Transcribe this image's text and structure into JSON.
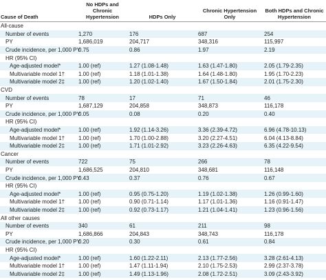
{
  "table": {
    "header": [
      "Cause of Death",
      "No HDPs and Chronic Hypertension",
      "HDPs Only",
      "Chronic Hypertension Only",
      "Both HDPs and Chronic Hypertension"
    ],
    "sections": [
      {
        "title": "All-cause",
        "rows": [
          [
            "Number of events",
            "1,270",
            "176",
            "687",
            "254"
          ],
          [
            "PY",
            "1,686,019",
            "204,717",
            "348,316",
            "115,997"
          ],
          [
            "Crude incidence, per 1,000 PY",
            "0.75",
            "0.86",
            "1.97",
            "2.19"
          ],
          [
            "HR (95% CI)"
          ],
          [
            "Age-adjusted model*",
            "1.00 (ref)",
            "1.27 (1.08-1.48)",
            "1.63 (1.47-1.80)",
            "2.05 (1.79-2.35)"
          ],
          [
            "Multivariable model 1†",
            "1.00 (ref)",
            "1.18 (1.01-1.38)",
            "1.64 (1.48-1.80)",
            "1.95 (1.70-2.23)"
          ],
          [
            "Multivariable model 2‡",
            "1.00 (ref)",
            "1.20 (1.02-1.40)",
            "1.67 (1.50-1.84)",
            "2.01 (1.75-2.30)"
          ]
        ]
      },
      {
        "title": "CVD",
        "rows": [
          [
            "Number of events",
            "78",
            "17",
            "71",
            "46"
          ],
          [
            "PY",
            "1,687,129",
            "204,858",
            "348,873",
            "116,178"
          ],
          [
            "Crude incidence, per 1,000 PY",
            "0.05",
            "0.08",
            "0.20",
            "0.40"
          ],
          [
            "HR (95% CI)"
          ],
          [
            "Age-adjusted model*",
            "1.00 (ref)",
            "1.92 (1.14-3.26)",
            "3.36 (2.39-4.72)",
            "6.96 (4.78-10.13)"
          ],
          [
            "Multivariable model 1†",
            "1.00 (ref)",
            "1.70 (1.00-2.88)",
            "3.20 (2.27-4.51)",
            "6.04 (4.13-8.84)"
          ],
          [
            "Multivariable model 2‡",
            "1.00 (ref)",
            "1.71 (1.01-2.92)",
            "3.23 (2.26-4.63)",
            "6.35 (4.22-9.54)"
          ]
        ]
      },
      {
        "title": "Cancer",
        "rows": [
          [
            "Number of events",
            "722",
            "75",
            "266",
            "78"
          ],
          [
            "PY",
            "1,686,525",
            "204,810",
            "348,681",
            "116,148"
          ],
          [
            "Crude incidence, per 1,000 PY",
            "0.43",
            "0.37",
            "0.76",
            "0.67"
          ],
          [
            "HR (95% CI)"
          ],
          [
            "Age-adjusted model*",
            "1.00 (ref)",
            "0.95 (0.75-1.20)",
            "1.19 (1.02-1.38)",
            "1.26 (0.99-1.60)"
          ],
          [
            "Multivariable model 1†",
            "1.00 (ref)",
            "0.90 (0.71-1.14)",
            "1.17 (1.01-1.36)",
            "1.16 (0.91-1.47)"
          ],
          [
            "Multivariable model 2‡",
            "1.00 (ref)",
            "0.92 (0.73-1.17)",
            "1.21 (1.04-1.41)",
            "1.23 (0.96-1.56)"
          ]
        ]
      },
      {
        "title": "All other causes",
        "rows": [
          [
            "Number of events",
            "340",
            "61",
            "211",
            "98"
          ],
          [
            "PY",
            "1,686,866",
            "204,843",
            "348,743",
            "116,178"
          ],
          [
            "Crude incidence, per 1,000 PY",
            "0.20",
            "0.30",
            "0.61",
            "0.84"
          ],
          [
            "HR (95% CI)"
          ],
          [
            "Age-adjusted model*",
            "1.00 (ref)",
            "1.60 (1.22-2.11)",
            "2.13 (1.77-2.56)",
            "3.28 (2.61-4.13)"
          ],
          [
            "Multivariable model 1†",
            "1.00 (ref)",
            "1.47 (1.11-1.94)",
            "2.10 (1.75-2.53)",
            "2.99 (2.37-3.78)"
          ],
          [
            "Multivariable model 2‡",
            "1.00 (ref)",
            "1.49 (1.13-1.96)",
            "2.08 (1.72-2.51)",
            "3.09 (2.43-3.92)"
          ]
        ]
      }
    ]
  }
}
